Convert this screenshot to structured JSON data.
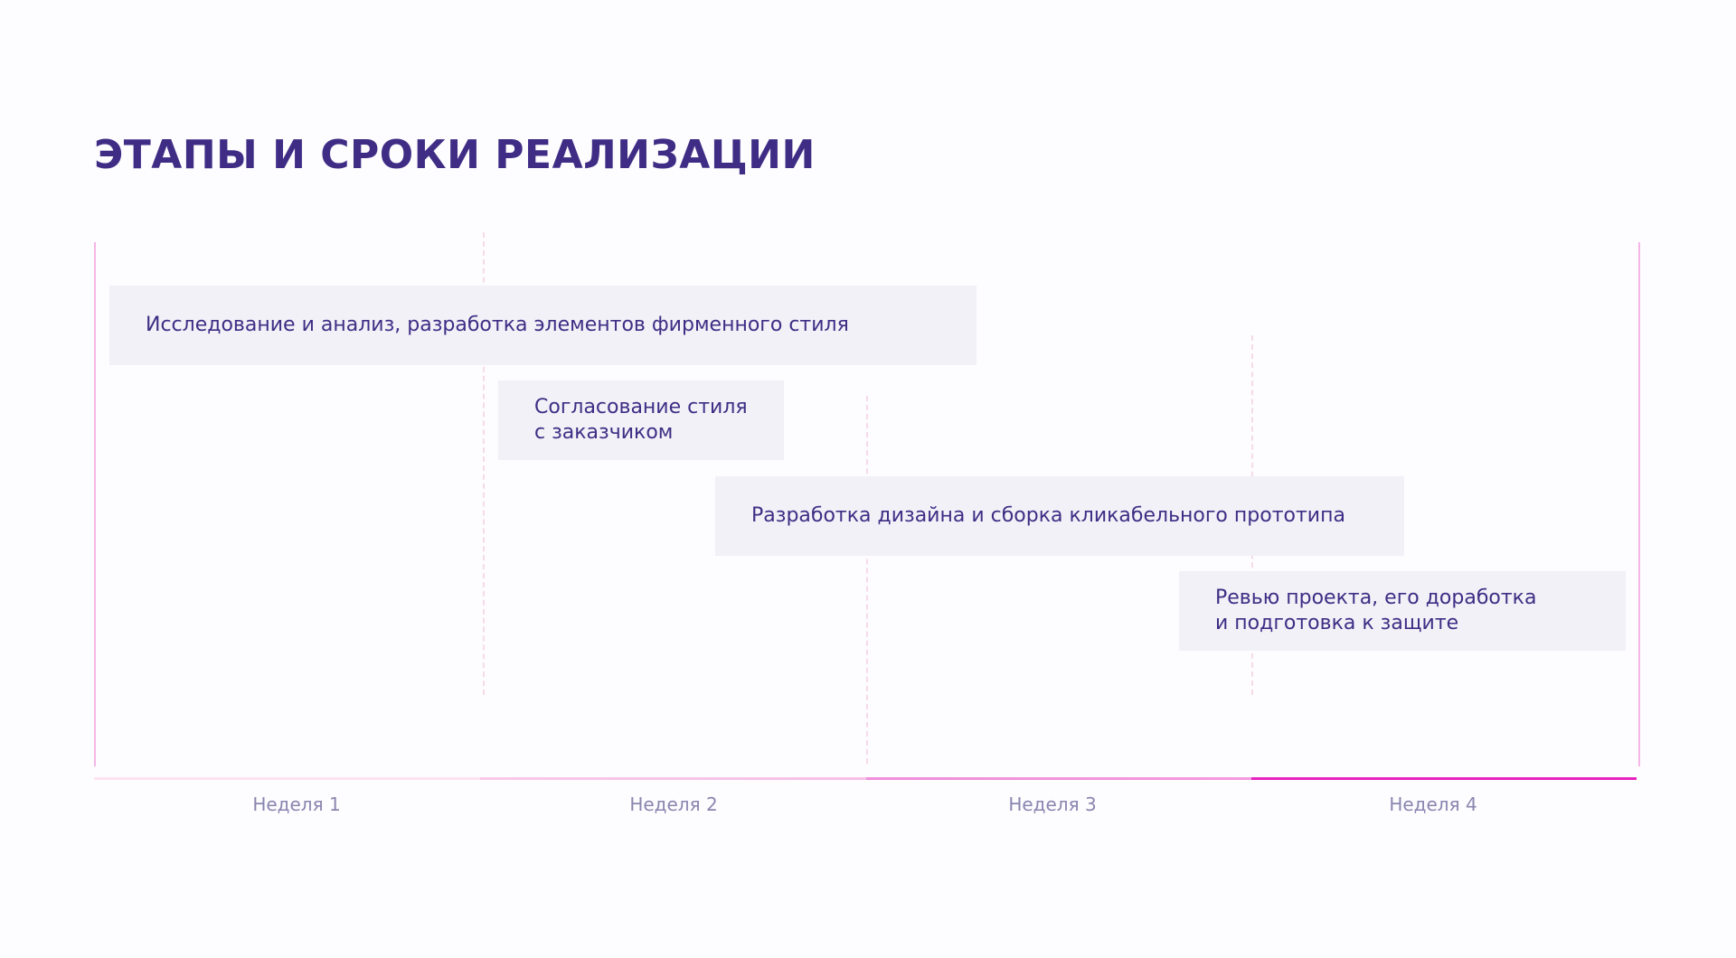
{
  "title": "ЭТАПЫ И СРОКИ РЕАЛИЗАЦИИ",
  "tasks": [
    {
      "lines": [
        "Исследование и анализ, разработка элементов фирменного стиля"
      ]
    },
    {
      "lines": [
        "Согласование стиля",
        "с заказчиком"
      ]
    },
    {
      "lines": [
        "Разработка дизайна и сборка кликабельного прототипа"
      ]
    },
    {
      "lines": [
        "Ревью проекта, его доработка",
        "и подготовка к защите"
      ]
    }
  ],
  "weeks": [
    "Неделя 1",
    "Неделя 2",
    "Неделя 3",
    "Неделя 4"
  ]
}
